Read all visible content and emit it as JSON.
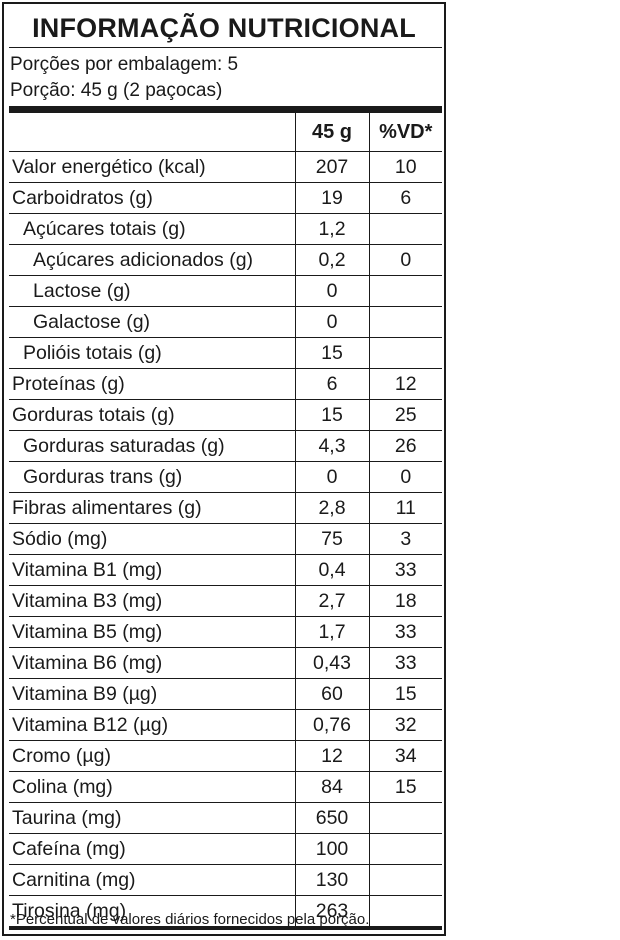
{
  "title": "INFORMAÇÃO NUTRICIONAL",
  "servings": {
    "per_package": "Porções por embalagem: 5",
    "portion": "Porção: 45 g (2 paçocas)"
  },
  "headers": {
    "name": "",
    "amount": "45 g",
    "vd": "%VD*"
  },
  "rows": [
    {
      "name": "Valor energético (kcal)",
      "amount": "207",
      "vd": "10",
      "indent": 0
    },
    {
      "name": "Carboidratos (g)",
      "amount": "19",
      "vd": "6",
      "indent": 0
    },
    {
      "name": "Açúcares totais (g)",
      "amount": "1,2",
      "vd": "",
      "indent": 1
    },
    {
      "name": "Açúcares adicionados (g)",
      "amount": "0,2",
      "vd": "0",
      "indent": 2
    },
    {
      "name": "Lactose (g)",
      "amount": "0",
      "vd": "",
      "indent": 2
    },
    {
      "name": "Galactose (g)",
      "amount": "0",
      "vd": "",
      "indent": 2
    },
    {
      "name": "Polióis totais (g)",
      "amount": "15",
      "vd": "",
      "indent": 1
    },
    {
      "name": "Proteínas (g)",
      "amount": "6",
      "vd": "12",
      "indent": 0
    },
    {
      "name": "Gorduras totais (g)",
      "amount": "15",
      "vd": "25",
      "indent": 0
    },
    {
      "name": "Gorduras saturadas (g)",
      "amount": "4,3",
      "vd": "26",
      "indent": 1
    },
    {
      "name": "Gorduras trans (g)",
      "amount": "0",
      "vd": "0",
      "indent": 1
    },
    {
      "name": "Fibras alimentares (g)",
      "amount": "2,8",
      "vd": "11",
      "indent": 0
    },
    {
      "name": "Sódio (mg)",
      "amount": "75",
      "vd": "3",
      "indent": 0
    },
    {
      "name": "Vitamina B1 (mg)",
      "amount": "0,4",
      "vd": "33",
      "indent": 0
    },
    {
      "name": "Vitamina B3 (mg)",
      "amount": "2,7",
      "vd": "18",
      "indent": 0
    },
    {
      "name": "Vitamina B5 (mg)",
      "amount": "1,7",
      "vd": "33",
      "indent": 0
    },
    {
      "name": "Vitamina B6 (mg)",
      "amount": "0,43",
      "vd": "33",
      "indent": 0
    },
    {
      "name": "Vitamina B9 (µg)",
      "amount": "60",
      "vd": "15",
      "indent": 0
    },
    {
      "name": "Vitamina B12 (µg)",
      "amount": "0,76",
      "vd": "32",
      "indent": 0
    },
    {
      "name": "Cromo (µg)",
      "amount": "12",
      "vd": "34",
      "indent": 0
    },
    {
      "name": "Colina (mg)",
      "amount": "84",
      "vd": "15",
      "indent": 0
    },
    {
      "name": "Taurina (mg)",
      "amount": "650",
      "vd": "",
      "indent": 0
    },
    {
      "name": "Cafeína (mg)",
      "amount": "100",
      "vd": "",
      "indent": 0
    },
    {
      "name": "Carnitina (mg)",
      "amount": "130",
      "vd": "",
      "indent": 0
    },
    {
      "name": "Tirosina (mg)",
      "amount": "263",
      "vd": "",
      "indent": 0
    }
  ],
  "footnote": "*Percentual de valores diários fornecidos pela porção."
}
